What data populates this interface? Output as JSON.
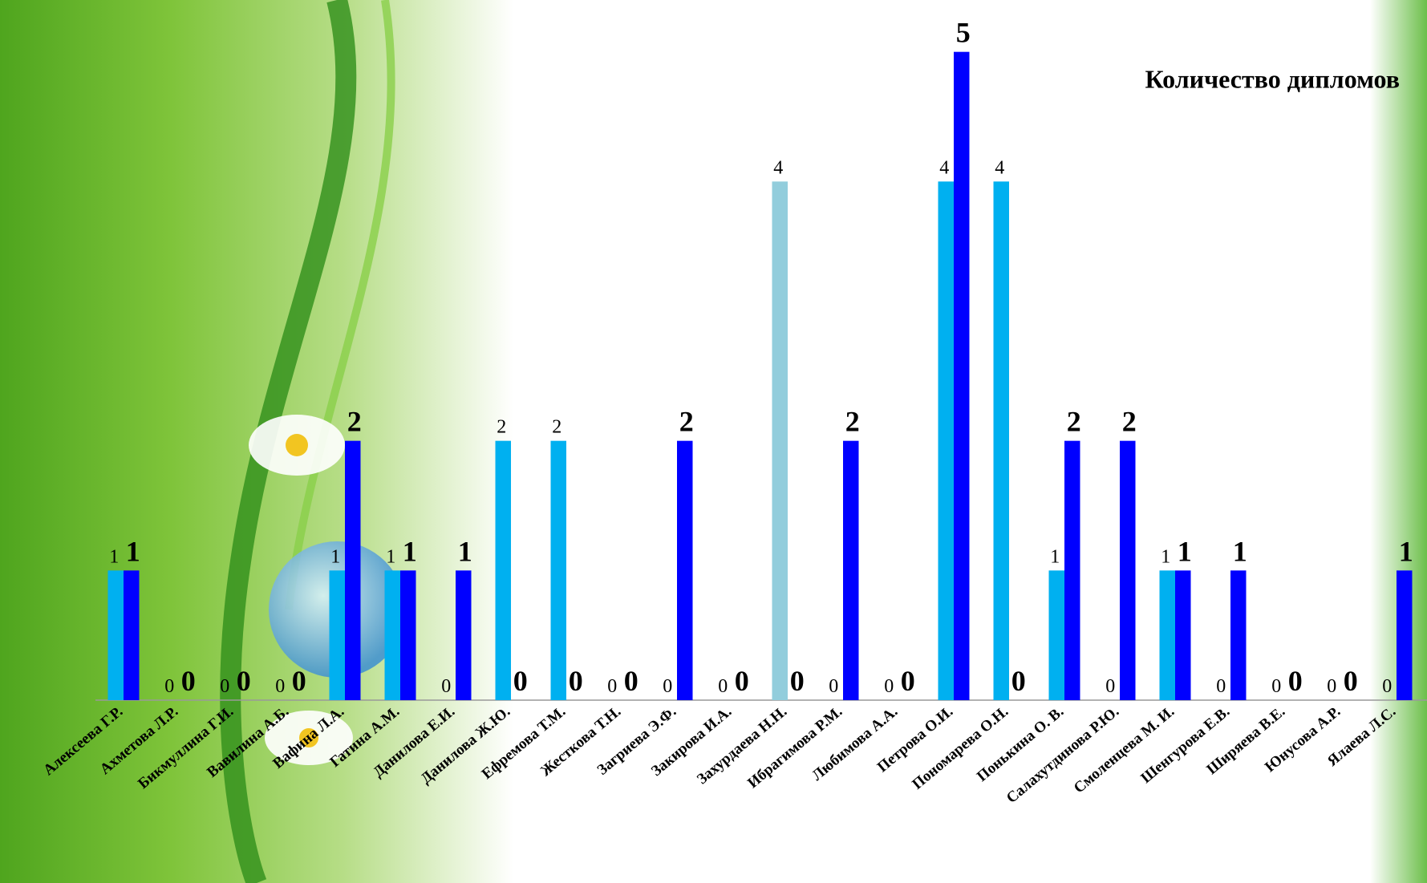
{
  "chart_data": {
    "type": "bar",
    "title": "Количество дипломов",
    "categories": [
      "Алексеева Г.Р.",
      "Ахметова Л.Р.",
      "Бикмуллина Г.И.",
      "Вавилина А.Б.",
      "Вафина Л.А.",
      "Гатина А.М.",
      "Данилова Е.И.",
      "Данилова Ж.Ю.",
      "Ефремова Т.М.",
      "Жесткова Т.Н.",
      "Загриева Э.Ф.",
      "Закирова  И.А.",
      "Захурдаева Н.Н.",
      "Ибрагимова Р.М.",
      "Любимова А.А.",
      "Петрова О.И.",
      "Пономарева О.Н.",
      "Понькина О. В.",
      "Салахутдинова Р.Ю.",
      "Смоленцева М. И.",
      "Шенгурова  Е.В.",
      "Ширяева В.Е.",
      "Юнусова А.Р.",
      "Ялаева Л.С."
    ],
    "series": [
      {
        "color": "#00b0f0",
        "colors": [
          "#00b0f0",
          "#00b0f0",
          "#00b0f0",
          "#00b0f0",
          "#00b0f0",
          "#00b0f0",
          "#00b0f0",
          "#00b0f0",
          "#00b0f0",
          "#00b0f0",
          "#00b0f0",
          "#00b0f0",
          "#92cddc",
          "#00b0f0",
          "#00b0f0",
          "#00b0f0",
          "#00b0f0",
          "#00b0f0",
          "#00b0f0",
          "#00b0f0",
          "#00b0f0",
          "#00b0f0",
          "#00b0f0",
          "#00b0f0"
        ],
        "values": [
          1,
          0,
          0,
          0,
          1,
          1,
          0,
          2,
          2,
          0,
          0,
          0,
          4,
          0,
          0,
          4,
          4,
          1,
          0,
          1,
          0,
          0,
          0,
          0
        ]
      },
      {
        "color": "#0000ff",
        "values": [
          1,
          0,
          0,
          0,
          2,
          1,
          1,
          0,
          0,
          0,
          2,
          0,
          0,
          2,
          0,
          5,
          0,
          2,
          2,
          1,
          1,
          0,
          0,
          1
        ]
      }
    ],
    "ylim": [
      0,
      5.4
    ]
  }
}
